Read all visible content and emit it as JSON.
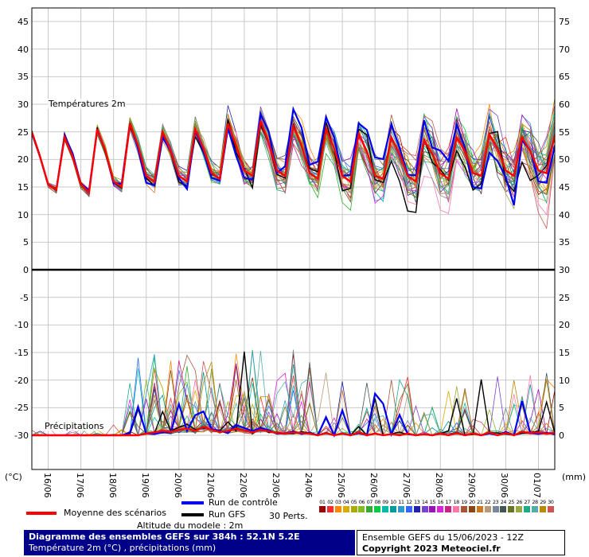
{
  "chart": {
    "temp_panel_label": "Températures 2m",
    "precip_panel_label": "Précipitations",
    "left_unit": "(°C)",
    "right_unit": "(mm)"
  },
  "chart_data": {
    "type": "line",
    "title": "Diagramme des ensembles GEFS sur 384h : 52.1N 5.2E",
    "subtitle": "Température 2m (°C) , précipitations (mm)",
    "x_start": "15/06 12Z",
    "step_hours": 6,
    "steps": 65,
    "x_day_labels": [
      "16/06",
      "17/06",
      "18/06",
      "19/06",
      "20/06",
      "21/06",
      "22/06",
      "23/06",
      "24/06",
      "25/06",
      "26/06",
      "27/06",
      "28/06",
      "29/06",
      "30/06",
      "01/07"
    ],
    "left_axis_ticks": [
      45,
      40,
      35,
      30,
      25,
      20,
      15,
      10,
      5,
      0,
      -5,
      -10,
      -15,
      -20,
      -25,
      -30
    ],
    "right_axis_ticks": [
      75,
      70,
      65,
      60,
      55,
      50,
      45,
      40,
      35,
      30,
      25,
      20,
      15,
      10,
      5,
      0
    ],
    "temp_axis_range": [
      -30,
      45
    ],
    "precip_axis_range": [
      0,
      30
    ],
    "temperature_mean": [
      25,
      20.5,
      15.5,
      14.5,
      24,
      20.5,
      15.5,
      14,
      25.5,
      21.5,
      16,
      15,
      26.5,
      22.5,
      17,
      16,
      25,
      21.5,
      17,
      16,
      25.5,
      22,
      17.5,
      16.5,
      26.5,
      22.5,
      18,
      17,
      27,
      23,
      18,
      17,
      26,
      22.5,
      17.5,
      16.5,
      25.5,
      22,
      17,
      16,
      24.5,
      21.5,
      17,
      16.5,
      24,
      21,
      17,
      16,
      23.5,
      21,
      17.5,
      16.5,
      24,
      21.5,
      17.5,
      17,
      24.5,
      22,
      18,
      17,
      24,
      21.5,
      18,
      17.5,
      24.5
    ],
    "precipitation_mean": [
      0,
      0,
      0,
      0,
      0,
      0,
      0,
      0,
      0,
      0,
      0,
      0,
      0,
      0,
      0.3,
      0.5,
      0.8,
      0.6,
      1,
      1.2,
      0.8,
      1.5,
      1,
      0.6,
      0.8,
      1.2,
      0.9,
      0.5,
      1,
      0.7,
      0.4,
      0.3,
      0.5,
      0.4,
      0.3,
      0,
      0.4,
      0,
      0.3,
      0,
      0.5,
      0,
      0.3,
      0,
      0.2,
      0,
      0.3,
      0,
      0.2,
      0,
      0.3,
      0,
      0.4,
      0,
      0.3,
      0,
      0.5,
      0,
      0.4,
      0,
      0.6,
      0.4,
      0.5,
      0.3,
      0.4
    ],
    "ensemble": {
      "members": 30,
      "spread_base": 0.4,
      "spread_growth": 6.0
    }
  },
  "legend": {
    "mean_label": "Moyenne des scénarios",
    "control_label": "Run de contrôle",
    "gfs_label": "Run GFS",
    "perts_label": "30 Perts.",
    "altitude_label": "Altitude du modele : 2m",
    "pert_numbers": [
      "01",
      "02",
      "03",
      "04",
      "05",
      "06",
      "07",
      "08",
      "09",
      "10",
      "11",
      "12",
      "13",
      "14",
      "15",
      "16",
      "17",
      "18",
      "19",
      "20",
      "21",
      "22",
      "23",
      "24",
      "25",
      "26",
      "27",
      "28",
      "29",
      "30"
    ],
    "pert_colors": [
      "#990000",
      "#ff2a2a",
      "#ff8800",
      "#ddaa00",
      "#aaaa00",
      "#88bb22",
      "#33aa33",
      "#00cc44",
      "#00bbaa",
      "#009999",
      "#3399cc",
      "#3366ff",
      "#2222aa",
      "#7744cc",
      "#9911bb",
      "#dd22dd",
      "#cc2288",
      "#ff77aa",
      "#aa5533",
      "#884411",
      "#cc7722",
      "#bb9977",
      "#778899",
      "#445555",
      "#667722",
      "#99aa44",
      "#22aa88",
      "#55aaaa",
      "#bb8800",
      "#cc5555"
    ]
  },
  "footer": {
    "run_info": "Ensemble GEFS du 15/06/2023 - 12Z",
    "copyright": "Copyright 2023 Meteociel.fr"
  },
  "colors": {
    "mean": "#ff0000",
    "control": "#0000ee",
    "gfs": "#000000",
    "grid": "#c9c9c9",
    "frame": "#000000",
    "footer_bg": "#000088"
  }
}
